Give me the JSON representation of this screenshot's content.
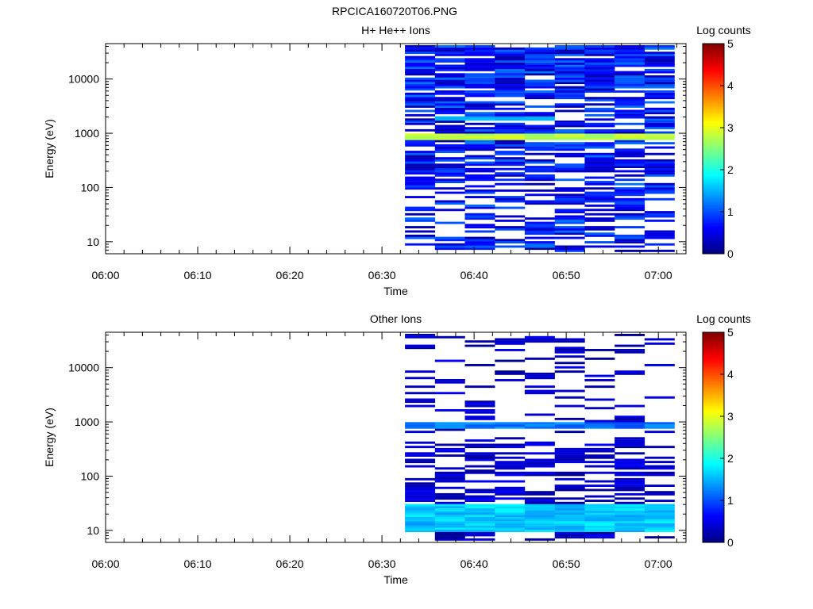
{
  "file_title": "RPCICA160720T06.PNG",
  "chart_data": [
    {
      "type": "heatmap",
      "title": "H+ He++ Ions",
      "xlabel": "Time",
      "ylabel": "Energy (eV)",
      "xlim": [
        "06:00",
        "07:03"
      ],
      "ylim": [
        6,
        45000
      ],
      "y_scale": "log",
      "x_ticks": [
        "06:00",
        "06:10",
        "06:20",
        "06:30",
        "06:40",
        "06:50",
        "07:00"
      ],
      "y_ticks": [
        "10",
        "100",
        "1000",
        "10000"
      ],
      "colorbar": {
        "label": "Log counts",
        "ticks": [
          "0",
          "1",
          "2",
          "3",
          "4",
          "5"
        ],
        "range": [
          0,
          5
        ],
        "colormap": "jet"
      },
      "time_bins": [
        "06:32:30",
        "06:35:45",
        "06:39:00",
        "06:42:15",
        "06:45:30",
        "06:48:45",
        "06:52:00",
        "06:55:15",
        "06:58:30"
      ],
      "bin_width_min": 3.25,
      "energy_range": [
        6.5,
        42000
      ],
      "energy_bins": 96,
      "prominent_band": {
        "energy": 850,
        "log_counts": 2.8,
        "description": "bright band near 1 keV"
      },
      "secondary_band": {
        "energy": 1900,
        "log_counts": 1.5
      },
      "typical_log_counts": [
        0.2,
        1.2
      ],
      "data_start": "06:32:30",
      "data_end": "07:01:45",
      "grid": false
    },
    {
      "type": "heatmap",
      "title": "Other Ions",
      "xlabel": "Time",
      "ylabel": "Energy (eV)",
      "xlim": [
        "06:00",
        "07:03"
      ],
      "ylim": [
        6,
        45000
      ],
      "y_scale": "log",
      "x_ticks": [
        "06:00",
        "06:10",
        "06:20",
        "06:30",
        "06:40",
        "06:50",
        "07:00"
      ],
      "y_ticks": [
        "10",
        "100",
        "1000",
        "10000"
      ],
      "colorbar": {
        "label": "Log counts",
        "ticks": [
          "0",
          "1",
          "2",
          "3",
          "4",
          "5"
        ],
        "range": [
          0,
          5
        ],
        "colormap": "jet"
      },
      "time_bins": [
        "06:32:30",
        "06:35:45",
        "06:39:00",
        "06:42:15",
        "06:45:30",
        "06:48:45",
        "06:52:00",
        "06:55:15",
        "06:58:30"
      ],
      "bin_width_min": 3.25,
      "energy_range": [
        6.5,
        42000
      ],
      "energy_bins": 96,
      "prominent_band": {
        "energy": 860,
        "log_counts": 1.2
      },
      "low_energy_band": {
        "energy_range": [
          9,
          30
        ],
        "log_counts": 1.6
      },
      "typical_log_counts": [
        0.1,
        0.6
      ],
      "data_start": "06:32:30",
      "data_end": "07:01:45",
      "grid": false
    }
  ]
}
